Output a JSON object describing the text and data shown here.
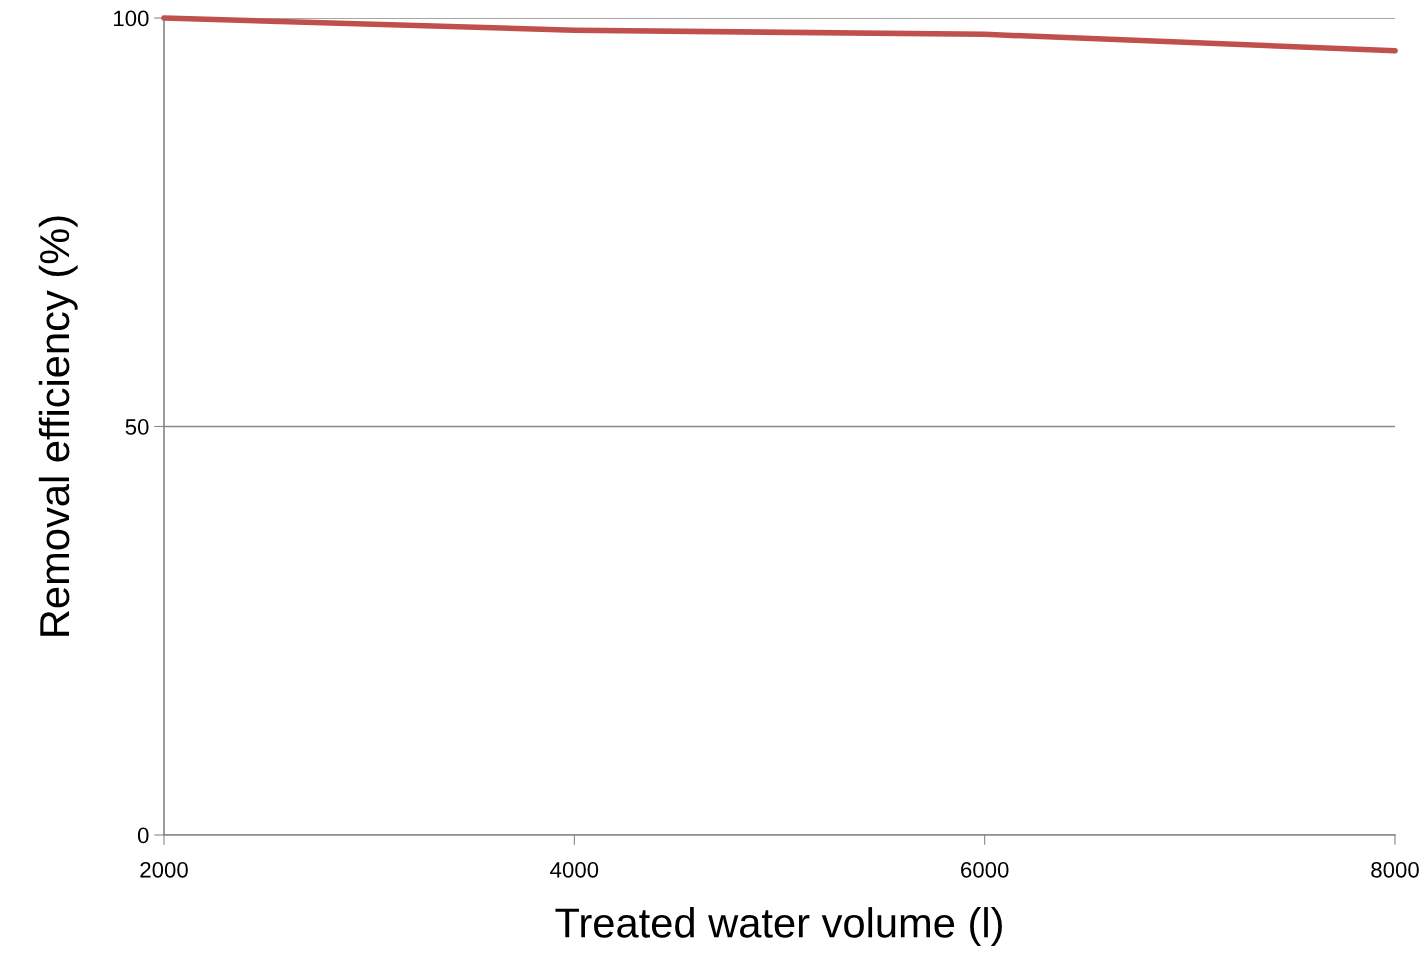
{
  "chart_data": {
    "type": "line",
    "xlabel": "Treated water volume (l)",
    "ylabel": "Removal efficiency (%)",
    "x": [
      2000,
      4000,
      6000,
      8000
    ],
    "series": [
      {
        "color": "#c0504d",
        "values": [
          100,
          98.5,
          98.0,
          96.0
        ]
      }
    ],
    "xlim": [
      2000,
      8000
    ],
    "xticks": [
      2000,
      4000,
      6000,
      8000
    ],
    "ylim": [
      0,
      100
    ],
    "yticks": [
      0,
      50,
      100
    ],
    "grid": "y",
    "legend": false,
    "marker": "none",
    "line_style": "solid"
  }
}
